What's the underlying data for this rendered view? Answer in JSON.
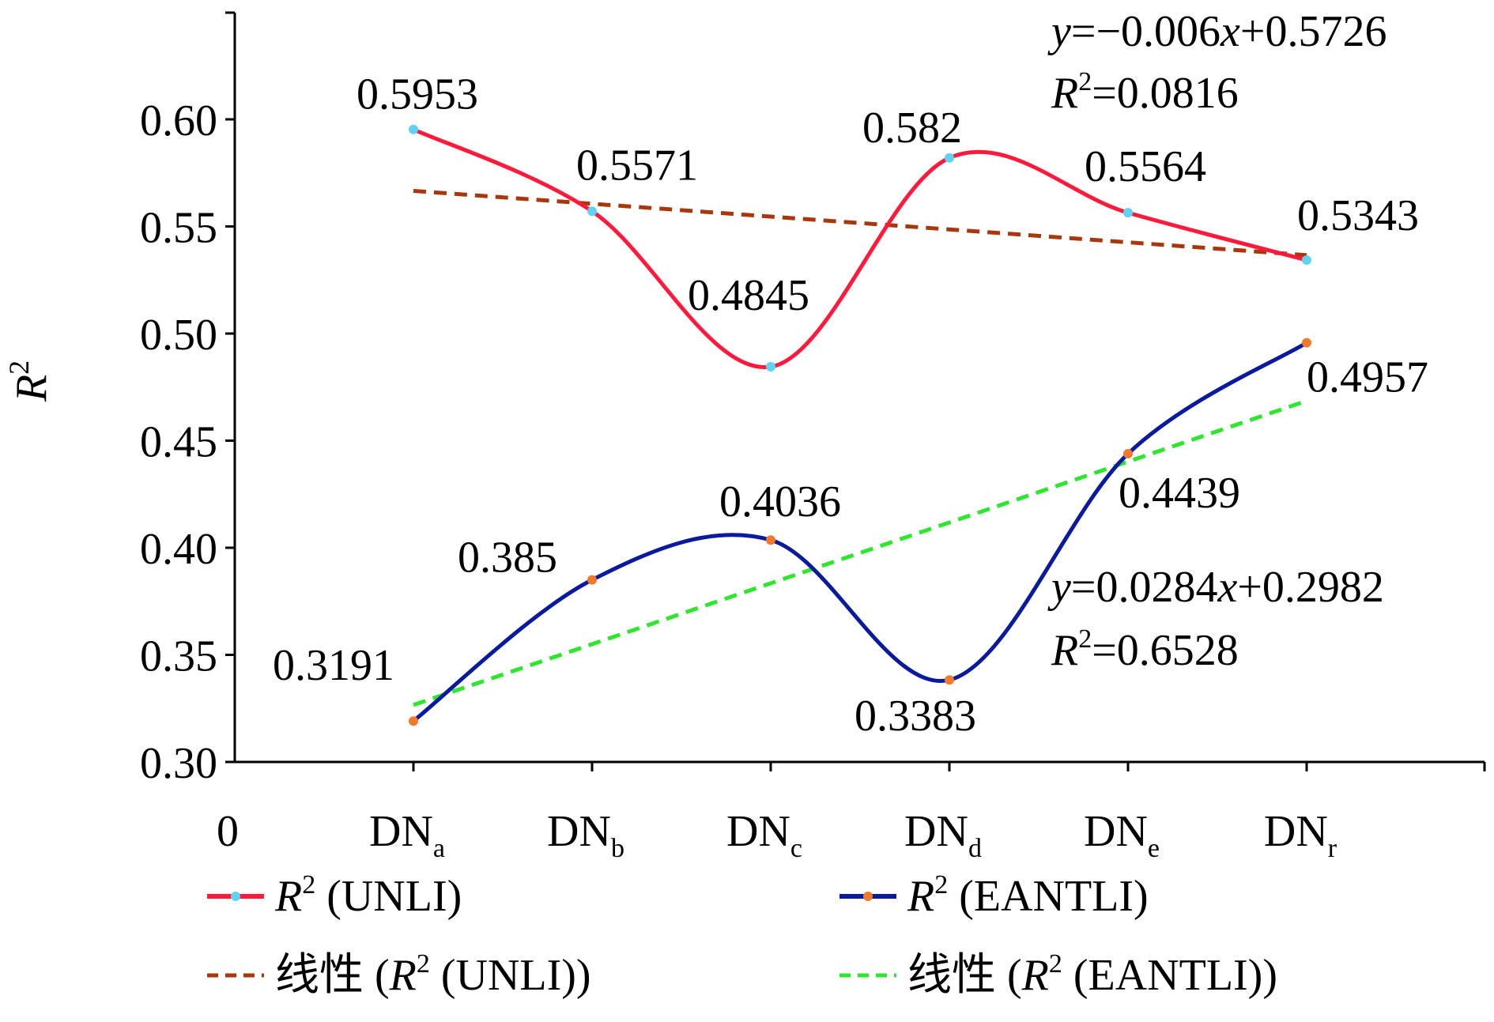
{
  "chart_data": {
    "type": "line",
    "ylabel": {
      "main": "R",
      "sup": "2"
    },
    "x_origin_label": "0",
    "categories": [
      {
        "main": "DN",
        "sub": "a"
      },
      {
        "main": "DN",
        "sub": "b"
      },
      {
        "main": "DN",
        "sub": "c"
      },
      {
        "main": "DN",
        "sub": "d"
      },
      {
        "main": "DN",
        "sub": "e"
      },
      {
        "main": "DN",
        "sub": "r"
      }
    ],
    "ylim": [
      0.3,
      0.62
    ],
    "yticks": [
      {
        "value": 0.3,
        "label": "0.30"
      },
      {
        "value": 0.35,
        "label": "0.35"
      },
      {
        "value": 0.4,
        "label": "0.40"
      },
      {
        "value": 0.45,
        "label": "0.45"
      },
      {
        "value": 0.5,
        "label": "0.50"
      },
      {
        "value": 0.55,
        "label": "0.55"
      },
      {
        "value": 0.6,
        "label": "0.60"
      }
    ],
    "grid": false,
    "legend_position": "bottom",
    "series": [
      {
        "id": "unli",
        "legend": {
          "prefix": "",
          "italic": "R",
          "sup": "2",
          "rest": " (UNLI)",
          "suffix": ""
        },
        "values": [
          0.5953,
          0.5571,
          0.4845,
          0.582,
          0.5564,
          0.5343
        ],
        "labels": [
          "0.5953",
          "0.5571",
          "0.4845",
          "0.582",
          "0.5564",
          "0.5343"
        ],
        "color": "#ff1a3c",
        "marker_color": "#5fd3f0",
        "smooth": true
      },
      {
        "id": "eantli",
        "legend": {
          "prefix": "",
          "italic": "R",
          "sup": "2",
          "rest": " (EANTLI)",
          "suffix": ""
        },
        "values": [
          0.3191,
          0.385,
          0.4036,
          0.3383,
          0.4439,
          0.4957
        ],
        "labels": [
          "0.3191",
          "0.385",
          "0.4036",
          "0.3383",
          "0.4439",
          "0.4957"
        ],
        "color": "#0a1a9e",
        "marker_color": "#f07a2a",
        "smooth": true
      }
    ],
    "trendlines": [
      {
        "id": "trend-unli",
        "legend": {
          "prefix": "线性 (",
          "italic": "R",
          "sup": "2",
          "rest": " (UNLI)",
          "suffix": ")"
        },
        "color": "#a8380c",
        "slope": -0.006,
        "intercept": 0.5726,
        "equation": {
          "y": "y",
          "eq": "=−0.006",
          "x": "x",
          "rest": "+0.5726"
        },
        "r2": {
          "R": "R",
          "sup": "2",
          "rest": "=0.0816"
        }
      },
      {
        "id": "trend-eantli",
        "legend": {
          "prefix": "线性 (",
          "italic": "R",
          "sup": "2",
          "rest": " (EANTLI)",
          "suffix": ")"
        },
        "color": "#2ee62e",
        "slope": 0.0284,
        "intercept": 0.2982,
        "equation": {
          "y": "y",
          "eq": "=0.0284",
          "x": "x",
          "rest": "+0.2982"
        },
        "r2": {
          "R": "R",
          "sup": "2",
          "rest": "=0.6528"
        }
      }
    ]
  }
}
